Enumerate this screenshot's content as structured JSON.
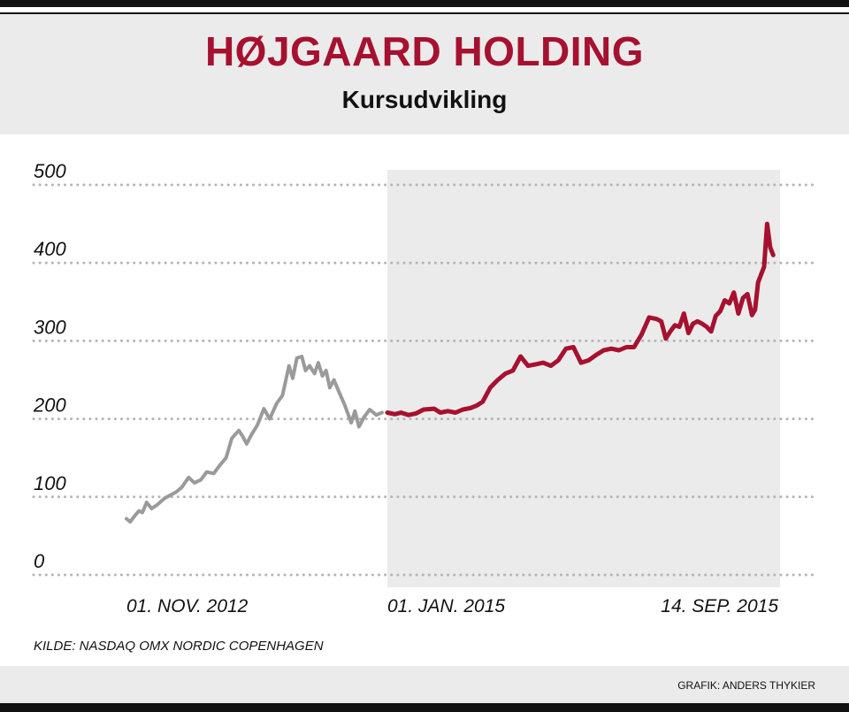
{
  "header": {
    "title": "HØJGAARD HOLDING",
    "subtitle": "Kursudvikling"
  },
  "colors": {
    "title": "#a6112f",
    "highlight_series": "#a6112f",
    "history_series": "#9a9a9a",
    "shaded_period": "#ebebeb",
    "grid": "#b5b5b5"
  },
  "chart_data": {
    "type": "line",
    "title": "",
    "xlabel": "",
    "ylabel": "",
    "ylim": [
      0,
      500
    ],
    "yticks": [
      0,
      100,
      200,
      300,
      400,
      500
    ],
    "xtick_labels": [
      "01. NOV. 2012",
      "01. JAN. 2015",
      "14. SEP. 2015"
    ],
    "grid": "horizontal dotted",
    "highlight_range": [
      "2015-01-01",
      "2015-09-14"
    ],
    "series": [
      {
        "color": "#9a9a9a",
        "points": [
          [
            "2012-11-01",
            72
          ],
          [
            "2012-11-10",
            68
          ],
          [
            "2012-11-20",
            75
          ],
          [
            "2012-12-01",
            82
          ],
          [
            "2012-12-10",
            80
          ],
          [
            "2012-12-20",
            93
          ],
          [
            "2013-01-01",
            85
          ],
          [
            "2013-01-15",
            90
          ],
          [
            "2013-02-01",
            98
          ],
          [
            "2013-02-15",
            102
          ],
          [
            "2013-03-01",
            106
          ],
          [
            "2013-03-15",
            112
          ],
          [
            "2013-04-01",
            125
          ],
          [
            "2013-04-15",
            118
          ],
          [
            "2013-05-01",
            122
          ],
          [
            "2013-05-15",
            132
          ],
          [
            "2013-06-01",
            130
          ],
          [
            "2013-06-15",
            140
          ],
          [
            "2013-07-01",
            150
          ],
          [
            "2013-07-15",
            175
          ],
          [
            "2013-08-01",
            185
          ],
          [
            "2013-08-10",
            178
          ],
          [
            "2013-08-20",
            168
          ],
          [
            "2013-09-01",
            180
          ],
          [
            "2013-09-15",
            192
          ],
          [
            "2013-10-01",
            213
          ],
          [
            "2013-10-15",
            200
          ],
          [
            "2013-11-01",
            220
          ],
          [
            "2013-11-15",
            230
          ],
          [
            "2013-12-01",
            268
          ],
          [
            "2013-12-10",
            252
          ],
          [
            "2013-12-20",
            278
          ],
          [
            "2014-01-01",
            280
          ],
          [
            "2014-01-10",
            262
          ],
          [
            "2014-01-20",
            268
          ],
          [
            "2014-02-01",
            258
          ],
          [
            "2014-02-10",
            272
          ],
          [
            "2014-02-20",
            255
          ],
          [
            "2014-03-01",
            262
          ],
          [
            "2014-03-10",
            240
          ],
          [
            "2014-03-20",
            250
          ],
          [
            "2014-04-01",
            235
          ],
          [
            "2014-04-15",
            218
          ],
          [
            "2014-05-01",
            195
          ],
          [
            "2014-05-10",
            210
          ],
          [
            "2014-05-20",
            190
          ],
          [
            "2014-06-01",
            202
          ],
          [
            "2014-06-15",
            212
          ],
          [
            "2014-07-01",
            205
          ],
          [
            "2014-07-15",
            208
          ]
        ]
      },
      {
        "color": "#a6112f",
        "points": [
          [
            "2015-01-01",
            208
          ],
          [
            "2015-01-06",
            206
          ],
          [
            "2015-01-10",
            208
          ],
          [
            "2015-01-15",
            205
          ],
          [
            "2015-01-20",
            207
          ],
          [
            "2015-01-25",
            212
          ],
          [
            "2015-02-01",
            213
          ],
          [
            "2015-02-05",
            208
          ],
          [
            "2015-02-10",
            210
          ],
          [
            "2015-02-15",
            208
          ],
          [
            "2015-02-20",
            212
          ],
          [
            "2015-02-25",
            214
          ],
          [
            "2015-03-01",
            217
          ],
          [
            "2015-03-05",
            222
          ],
          [
            "2015-03-10",
            240
          ],
          [
            "2015-03-15",
            250
          ],
          [
            "2015-03-20",
            258
          ],
          [
            "2015-03-25",
            262
          ],
          [
            "2015-03-30",
            280
          ],
          [
            "2015-04-04",
            268
          ],
          [
            "2015-04-09",
            270
          ],
          [
            "2015-04-14",
            272
          ],
          [
            "2015-04-19",
            268
          ],
          [
            "2015-04-24",
            275
          ],
          [
            "2015-04-29",
            290
          ],
          [
            "2015-05-04",
            292
          ],
          [
            "2015-05-09",
            272
          ],
          [
            "2015-05-14",
            275
          ],
          [
            "2015-05-19",
            282
          ],
          [
            "2015-05-24",
            288
          ],
          [
            "2015-05-29",
            290
          ],
          [
            "2015-06-03",
            288
          ],
          [
            "2015-06-08",
            292
          ],
          [
            "2015-06-13",
            292
          ],
          [
            "2015-06-18",
            308
          ],
          [
            "2015-06-23",
            330
          ],
          [
            "2015-06-28",
            328
          ],
          [
            "2015-07-01",
            325
          ],
          [
            "2015-07-04",
            303
          ],
          [
            "2015-07-07",
            312
          ],
          [
            "2015-07-10",
            320
          ],
          [
            "2015-07-13",
            318
          ],
          [
            "2015-07-16",
            335
          ],
          [
            "2015-07-19",
            310
          ],
          [
            "2015-07-22",
            322
          ],
          [
            "2015-07-25",
            325
          ],
          [
            "2015-07-28",
            322
          ],
          [
            "2015-07-31",
            318
          ],
          [
            "2015-08-03",
            312
          ],
          [
            "2015-08-06",
            332
          ],
          [
            "2015-08-09",
            338
          ],
          [
            "2015-08-12",
            352
          ],
          [
            "2015-08-15",
            348
          ],
          [
            "2015-08-18",
            362
          ],
          [
            "2015-08-21",
            335
          ],
          [
            "2015-08-24",
            355
          ],
          [
            "2015-08-27",
            360
          ],
          [
            "2015-08-30",
            333
          ],
          [
            "2015-09-01",
            340
          ],
          [
            "2015-09-03",
            375
          ],
          [
            "2015-09-05",
            385
          ],
          [
            "2015-09-07",
            395
          ],
          [
            "2015-09-09",
            450
          ],
          [
            "2015-09-11",
            420
          ],
          [
            "2015-09-13",
            410
          ]
        ]
      }
    ]
  },
  "footer": {
    "source": "KILDE: NASDAQ OMX NORDIC COPENHAGEN",
    "credit": "GRAFIK: ANDERS THYKIER"
  }
}
